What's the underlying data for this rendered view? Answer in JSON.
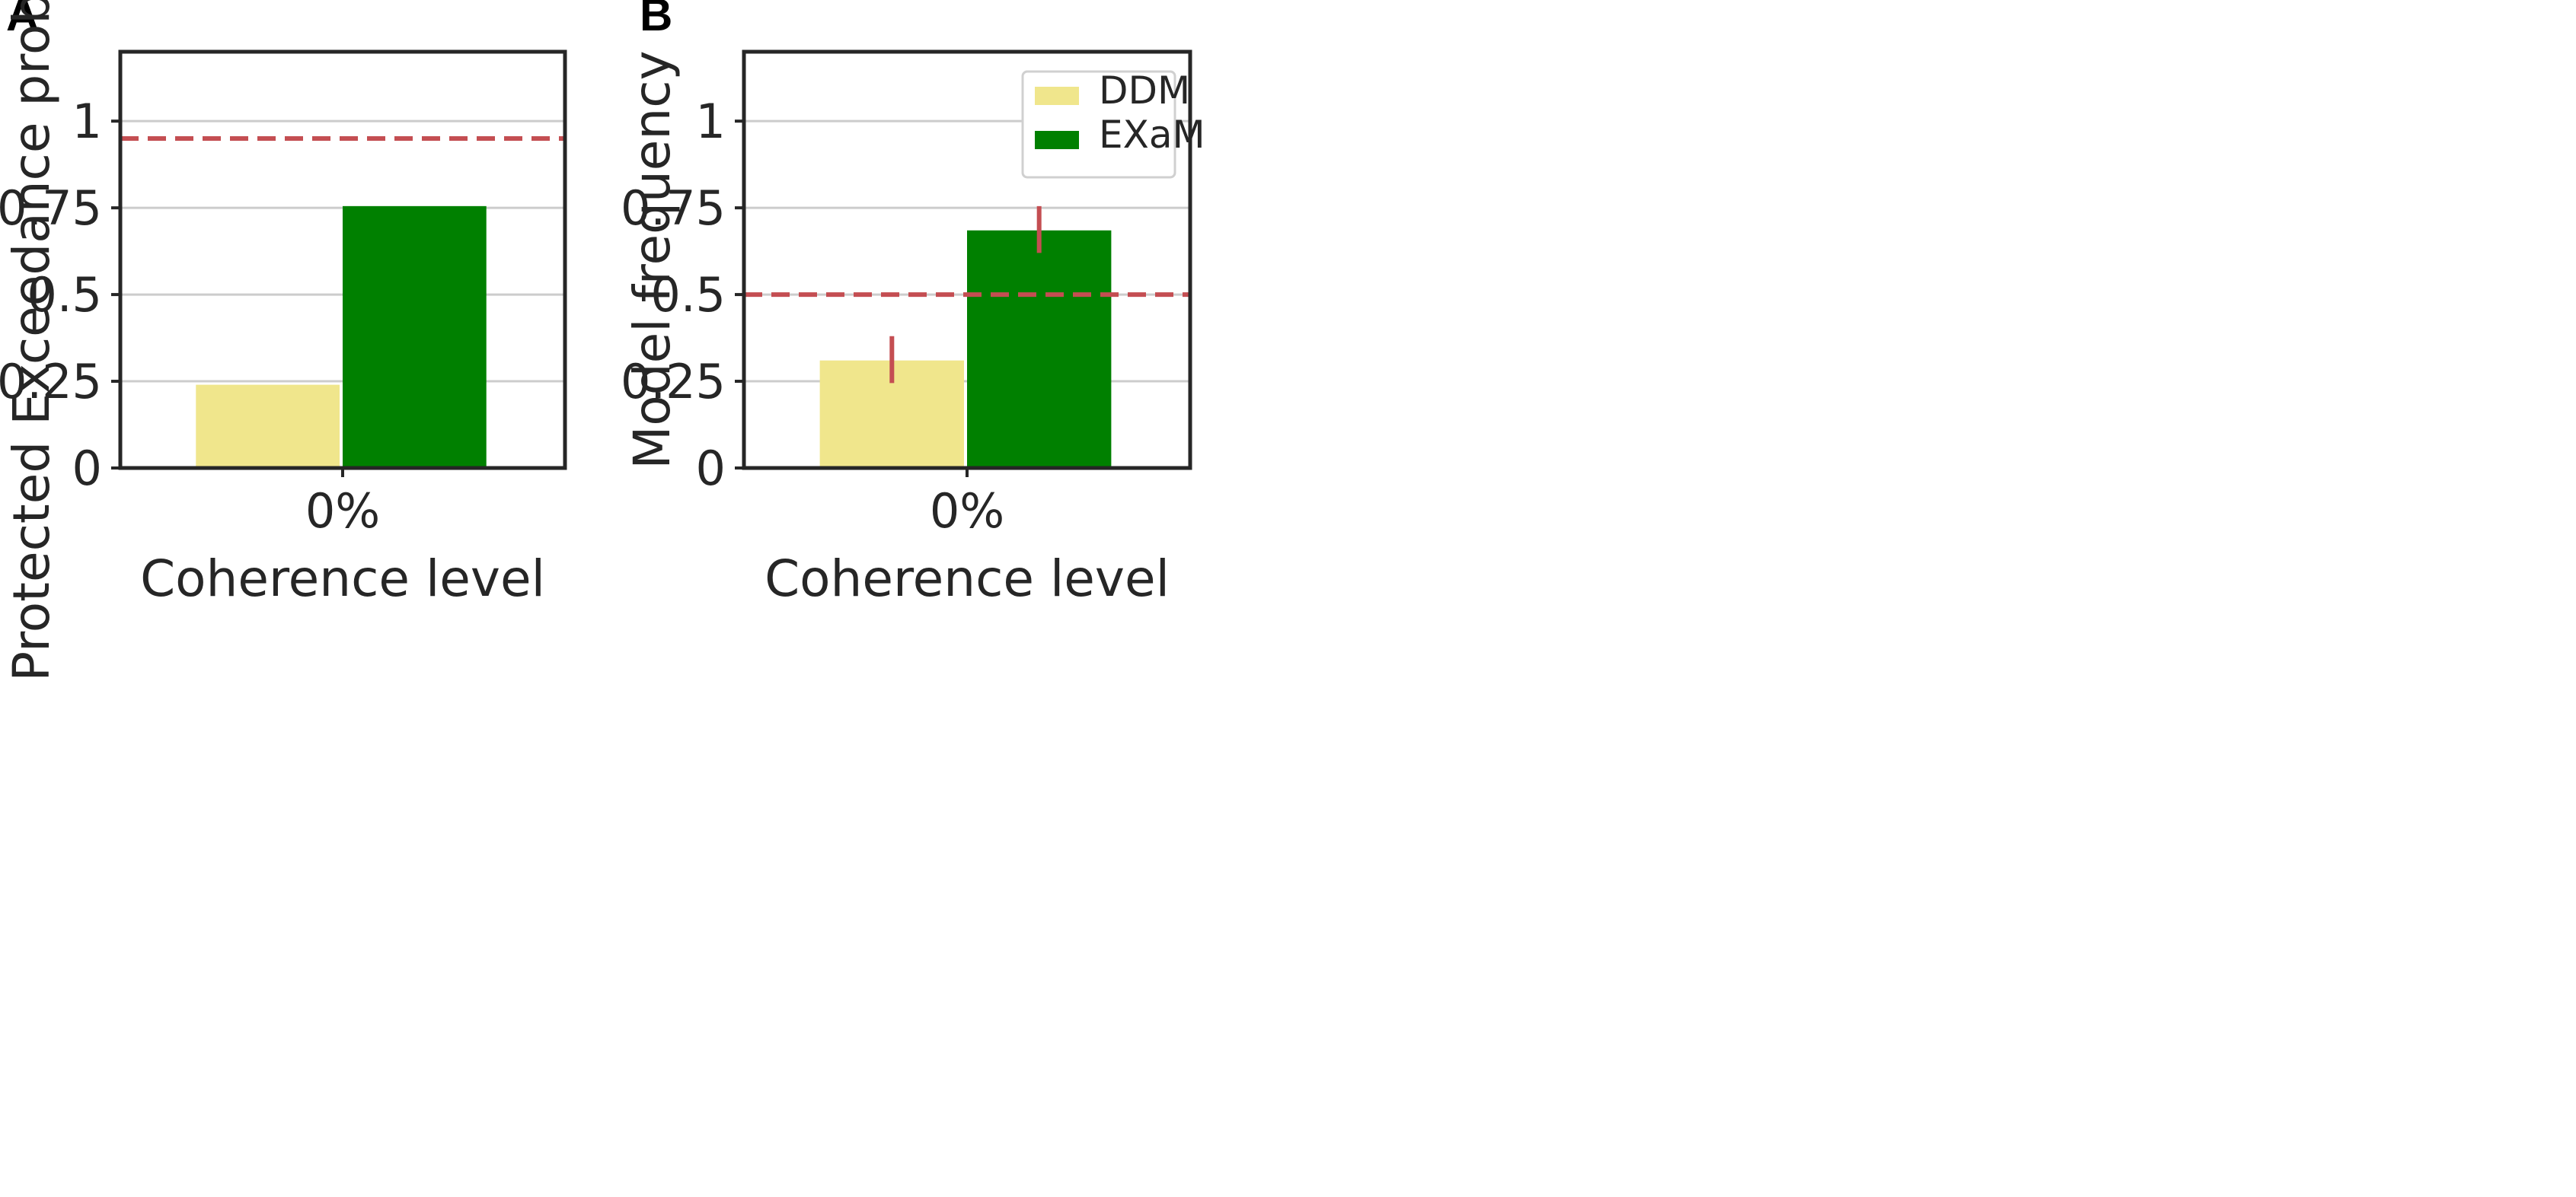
{
  "chart_data": [
    {
      "panel": "A",
      "type": "bar",
      "categories": [
        "0%"
      ],
      "series": [
        {
          "name": "DDM",
          "values": [
            0.24
          ],
          "color": "#f0e68c"
        },
        {
          "name": "EXaM",
          "values": [
            0.755
          ],
          "color": "#008000"
        }
      ],
      "xlabel": "Coherence level",
      "ylabel": "Protected Exceedance probability",
      "ylim": [
        0,
        1.2
      ],
      "yticks": [
        {
          "value": 0,
          "label": "0"
        },
        {
          "value": 0.25,
          "label": "0.25"
        },
        {
          "value": 0.5,
          "label": "0.5"
        },
        {
          "value": 0.75,
          "label": "0.75"
        },
        {
          "value": 1,
          "label": "1"
        }
      ],
      "reference_line": {
        "value": 0.95,
        "color": "#c44e52",
        "style": "dashed"
      },
      "grid": "horizontal",
      "legend": null
    },
    {
      "panel": "B",
      "type": "bar",
      "categories": [
        "0%"
      ],
      "series": [
        {
          "name": "DDM",
          "values": [
            0.31
          ],
          "error": [
            [
              0.245,
              0.38
            ]
          ],
          "color": "#f0e68c"
        },
        {
          "name": "EXaM",
          "values": [
            0.685
          ],
          "error": [
            [
              0.62,
              0.755
            ]
          ],
          "color": "#008000"
        }
      ],
      "xlabel": "Coherence level",
      "ylabel": "Model frequency",
      "ylim": [
        0,
        1.2
      ],
      "yticks": [
        {
          "value": 0,
          "label": "0"
        },
        {
          "value": 0.25,
          "label": "0.25"
        },
        {
          "value": 0.5,
          "label": "0.5"
        },
        {
          "value": 0.75,
          "label": "0.75"
        },
        {
          "value": 1,
          "label": "1"
        }
      ],
      "reference_line": {
        "value": 0.5,
        "color": "#c44e52",
        "style": "dashed"
      },
      "error_bar_color": "#c44e52",
      "grid": "horizontal",
      "legend": {
        "placement": "top-right",
        "entries": [
          "DDM",
          "EXaM"
        ]
      }
    }
  ],
  "colors": {
    "axis": "#262626",
    "grid": "#cccccc",
    "reference": "#c44e52",
    "error": "#c44e52"
  }
}
